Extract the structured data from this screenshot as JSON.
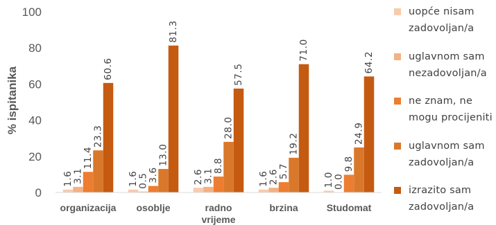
{
  "chart_data": {
    "type": "bar",
    "ylabel": "% ispitanika",
    "xlabel": "",
    "ylim": [
      0,
      100
    ],
    "yticks": [
      0,
      20,
      40,
      60,
      80,
      100
    ],
    "grid": false,
    "legend_position": "right",
    "categories": [
      "organizacija",
      "osoblje",
      "radno vrijeme",
      "brzina",
      "Studomat"
    ],
    "series": [
      {
        "name": "uopće nisam zadovoljan/a",
        "color": "#F8CBAD",
        "values": [
          1.6,
          1.6,
          2.6,
          1.6,
          1.0
        ],
        "labels": [
          "1.6",
          "1.6",
          "2.6",
          "1.6",
          "1.0"
        ]
      },
      {
        "name": "uglavnom sam nezadovoljan/a",
        "color": "#F4B183",
        "values": [
          3.1,
          0.5,
          3.1,
          2.6,
          0.0
        ],
        "labels": [
          "3.1",
          "0.5",
          "3.1",
          "2.6",
          "0.0"
        ]
      },
      {
        "name": "ne znam, ne mogu procijeniti",
        "color": "#ED7D31",
        "values": [
          11.4,
          3.6,
          8.8,
          5.7,
          9.8
        ],
        "labels": [
          "11.4",
          "3.6",
          "8.8",
          "5.7",
          "9.8"
        ]
      },
      {
        "name": "uglavnom sam zadovoljan/a",
        "color": "#D9782B",
        "values": [
          23.3,
          13.0,
          28.0,
          19.2,
          24.9
        ],
        "labels": [
          "23.3",
          "13.0",
          "28.0",
          "19.2",
          "24.9"
        ]
      },
      {
        "name": "izrazito sam zadovoljan/a",
        "color": "#C55A11",
        "values": [
          60.6,
          81.3,
          57.5,
          71.0,
          64.2
        ],
        "labels": [
          "60.6",
          "81.3",
          "57.5",
          "71.0",
          "64.2"
        ]
      }
    ]
  },
  "legend": {
    "items": [
      {
        "line1": "uopće nisam",
        "line2": "zadovoljan/a"
      },
      {
        "line1": "uglavnom sam",
        "line2": "nezadovoljan/a"
      },
      {
        "line1": "ne znam, ne",
        "line2": "mogu procijeniti"
      },
      {
        "line1": "uglavnom sam",
        "line2": "zadovoljan/a"
      },
      {
        "line1": "izrazito sam",
        "line2": "zadovoljan/a"
      }
    ]
  }
}
